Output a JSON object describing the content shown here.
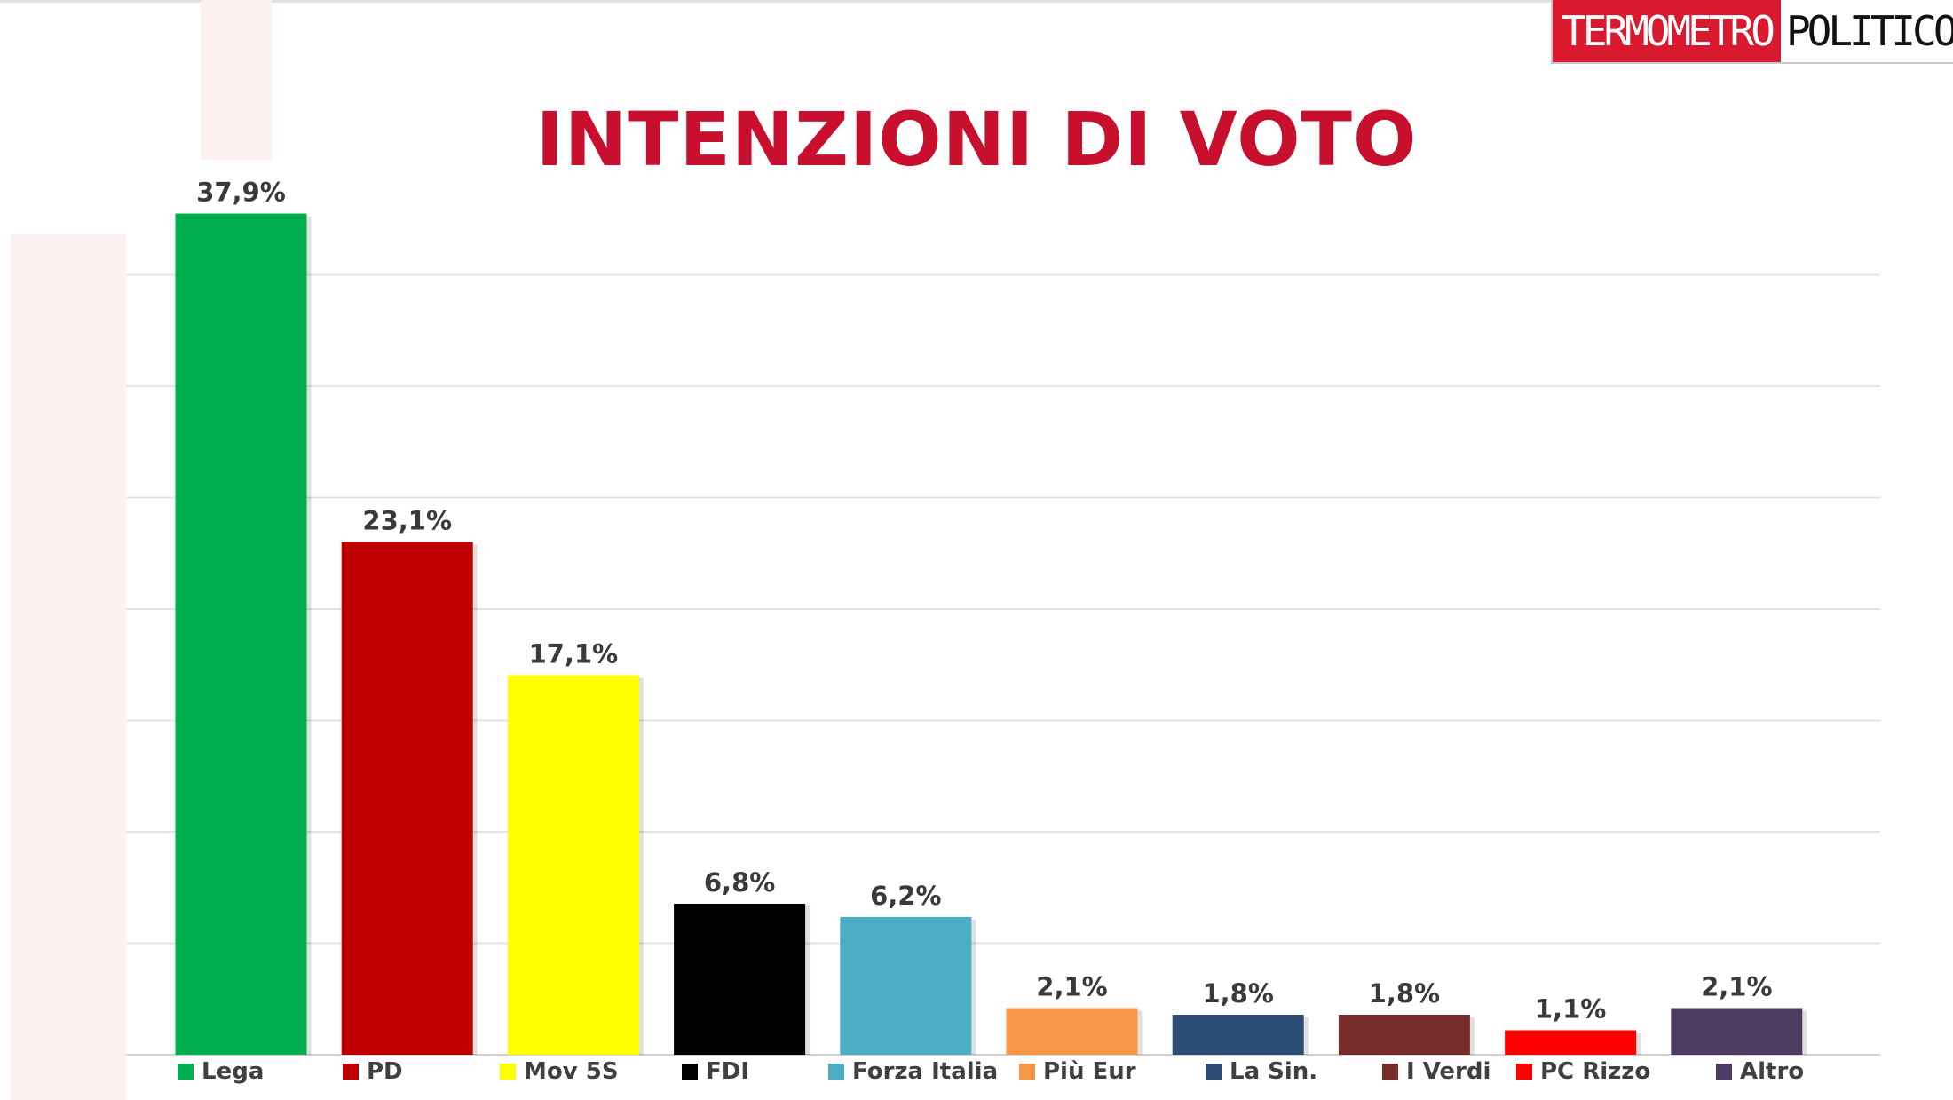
{
  "brand": {
    "part1": "TERMOMETRO",
    "part2": "POLITICO"
  },
  "chart_data": {
    "type": "bar",
    "title": "INTENZIONI DI VOTO",
    "categories": [
      "Lega",
      "PD",
      "Mov 5S",
      "FDI",
      "Forza Italia",
      "Più Eur",
      "La Sin.",
      "I Verdi",
      "PC Rizzo",
      "Altro"
    ],
    "values": [
      37.9,
      23.1,
      17.1,
      6.8,
      6.2,
      2.1,
      1.8,
      1.8,
      1.1,
      2.1
    ],
    "data_labels": [
      "37,9%",
      "23,1%",
      "17,1%",
      "6,8%",
      "6,2%",
      "2,1%",
      "1,8%",
      "1,8%",
      "1,1%",
      "2,1%"
    ],
    "colors": [
      "#00b04f",
      "#c00000",
      "#ffff00",
      "#000000",
      "#4bacc6",
      "#f79646",
      "#2c4d75",
      "#772c2a",
      "#ff0000",
      "#4d3b62"
    ],
    "ylim": [
      0,
      40
    ],
    "grid": true,
    "legend_position": "bottom"
  }
}
